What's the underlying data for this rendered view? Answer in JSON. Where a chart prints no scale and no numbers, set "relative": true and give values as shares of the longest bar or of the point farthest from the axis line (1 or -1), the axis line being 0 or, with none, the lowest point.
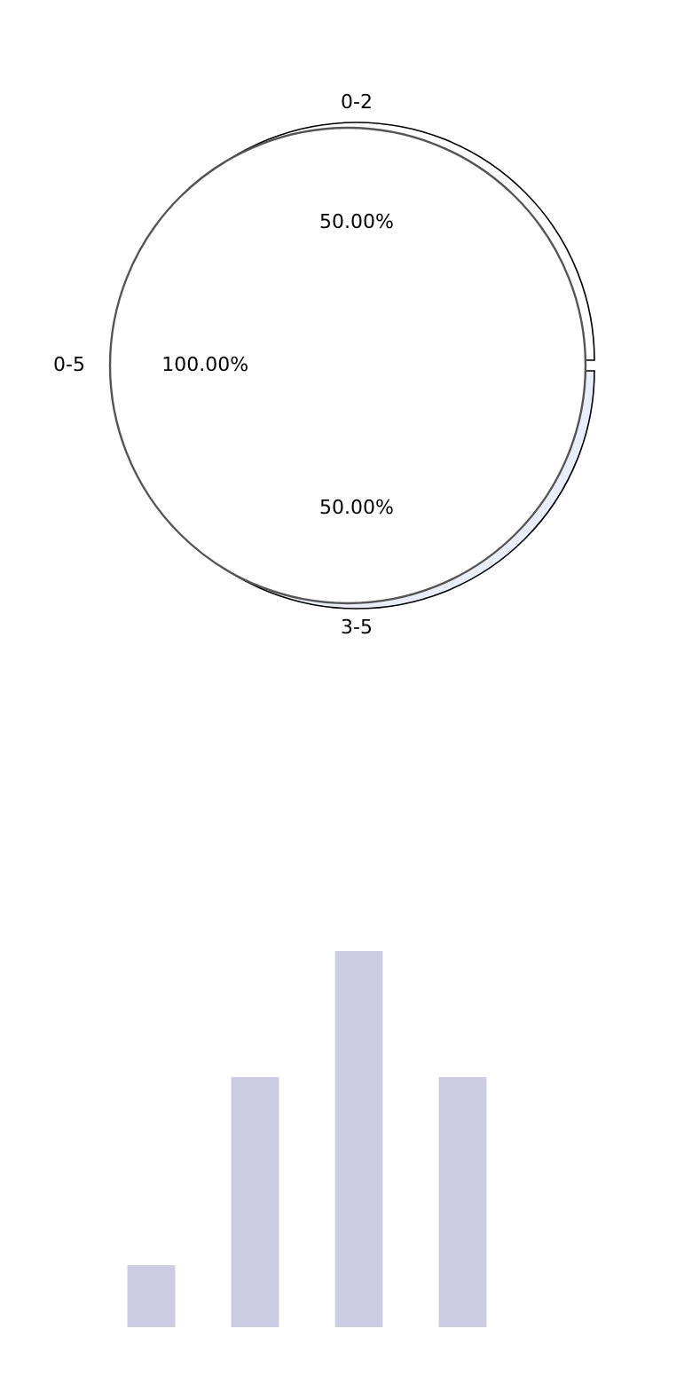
{
  "chart_data": [
    {
      "type": "pie",
      "categories": [
        "0-2",
        "3-5"
      ],
      "values": [
        50,
        50
      ],
      "colors": [
        "#ffffff",
        "#e8eefc"
      ],
      "value_labels": [
        "50.00%",
        "50.00%"
      ]
    },
    {
      "type": "pie",
      "categories": [
        "0-5"
      ],
      "values": [
        100
      ],
      "colors": [
        "#ffffff"
      ],
      "value_labels": [
        "100.00%"
      ]
    },
    {
      "type": "bar",
      "categories": [
        null,
        null,
        null,
        null
      ],
      "values": [
        0.165,
        0.665,
        1,
        0.665
      ],
      "color": "#cccce4",
      "relative": true
    }
  ]
}
